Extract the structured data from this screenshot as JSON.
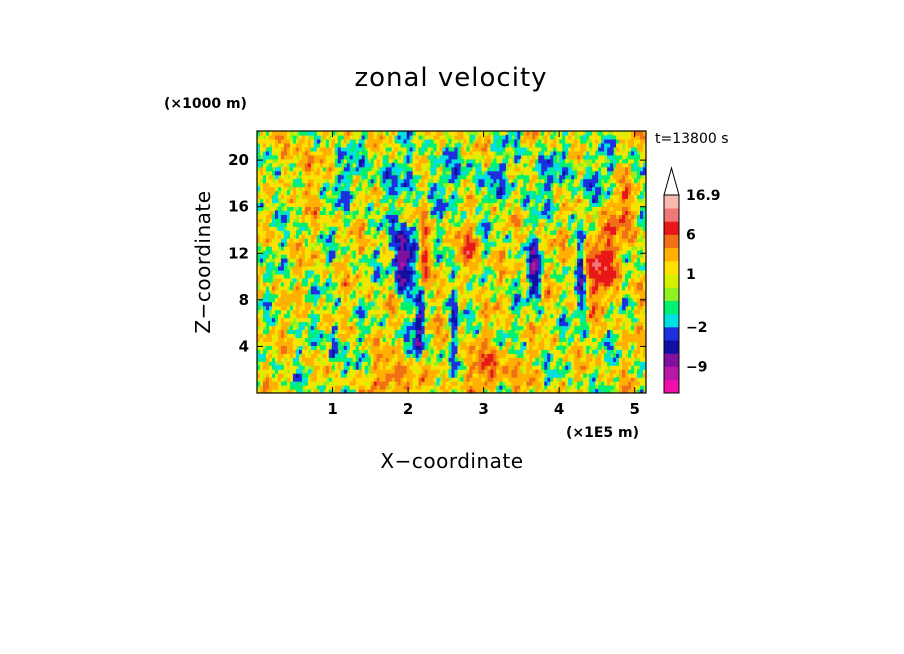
{
  "chart_data": {
    "type": "heatmap",
    "title": "zonal velocity",
    "xlabel": "X−coordinate",
    "ylabel": "Z−coordinate",
    "x_unit_label": "(×1E5 m)",
    "y_unit_label": "(×1000 m)",
    "time_label": "t=13800 s",
    "xlim": [
      0,
      5.15
    ],
    "ylim": [
      0,
      22.5
    ],
    "x_ticks": [
      {
        "value": 1,
        "label": "1"
      },
      {
        "value": 2,
        "label": "2"
      },
      {
        "value": 3,
        "label": "3"
      },
      {
        "value": 4,
        "label": "4"
      },
      {
        "value": 5,
        "label": "5"
      }
    ],
    "y_ticks": [
      {
        "value": 4,
        "label": "4"
      },
      {
        "value": 8,
        "label": "8"
      },
      {
        "value": 12,
        "label": "12"
      },
      {
        "value": 16,
        "label": "16"
      },
      {
        "value": 20,
        "label": "20"
      }
    ],
    "colorbar": {
      "max_label": "16.9",
      "tick_labels": [
        {
          "value": 16.9,
          "label": "16.9"
        },
        {
          "value": 6,
          "label": "6"
        },
        {
          "value": 1,
          "label": "1"
        },
        {
          "value": -2,
          "label": "−2"
        },
        {
          "value": -9,
          "label": "−9"
        }
      ],
      "levels": [
        {
          "lo": -15,
          "hi": -12,
          "color": "#ee10a8"
        },
        {
          "lo": -12,
          "hi": -9,
          "color": "#b818a8"
        },
        {
          "lo": -9,
          "hi": -6,
          "color": "#8010a0"
        },
        {
          "lo": -6,
          "hi": -4,
          "color": "#1010a0"
        },
        {
          "lo": -4,
          "hi": -2,
          "color": "#1c30e0"
        },
        {
          "lo": -2,
          "hi": -1,
          "color": "#00e0e0"
        },
        {
          "lo": -1,
          "hi": 0,
          "color": "#00f070"
        },
        {
          "lo": 0,
          "hi": 0.5,
          "color": "#90f020"
        },
        {
          "lo": 0.5,
          "hi": 1,
          "color": "#d8f000"
        },
        {
          "lo": 1,
          "hi": 2,
          "color": "#ffe000"
        },
        {
          "lo": 2,
          "hi": 4,
          "color": "#ffb000"
        },
        {
          "lo": 4,
          "hi": 6,
          "color": "#f07018"
        },
        {
          "lo": 6,
          "hi": 9,
          "color": "#e81818"
        },
        {
          "lo": 9,
          "hi": 13,
          "color": "#f07878"
        },
        {
          "lo": 13,
          "hi": 16.9,
          "color": "#f8b8b0"
        }
      ]
    }
  }
}
